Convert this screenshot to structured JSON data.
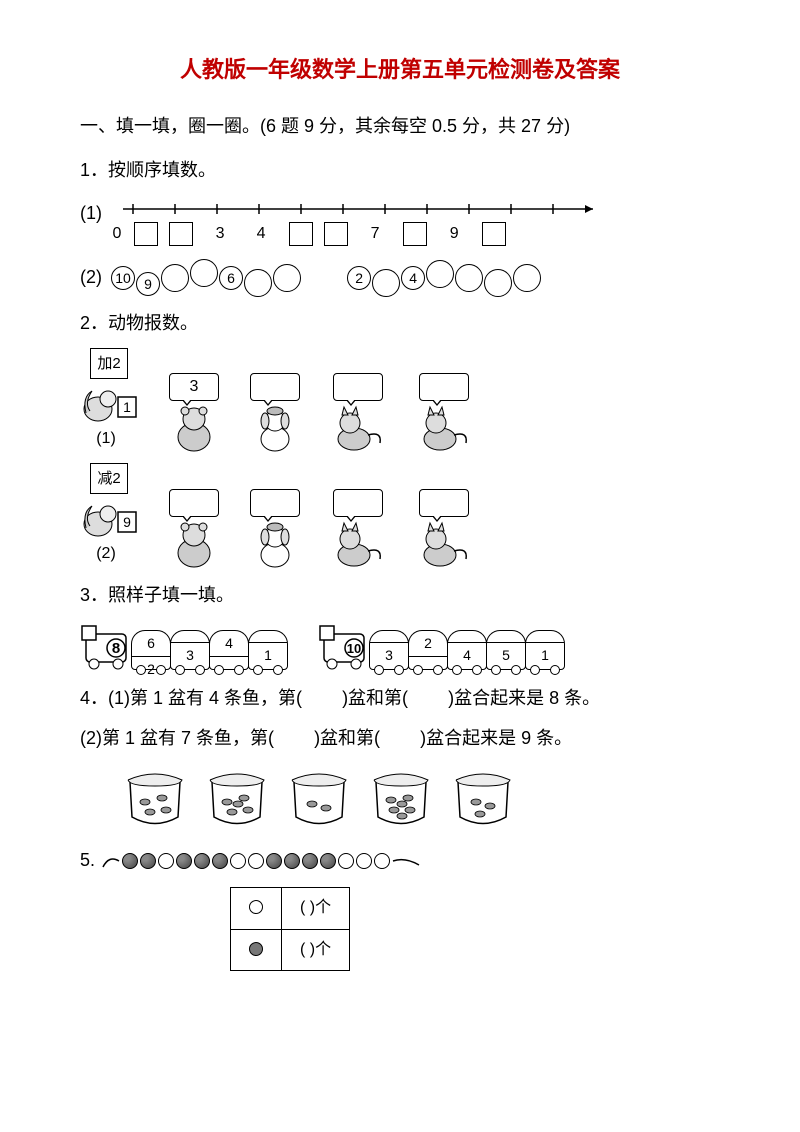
{
  "title": "人教版一年级数学上册第五单元检测卷及答案",
  "section1": {
    "heading": "一、填一填，圈一圈。(6 题 9 分，其余每空 0.5 分，共 27 分)",
    "q1": {
      "label": "1．按顺序填数。",
      "sub1_prefix": "(1)",
      "nl_marks": [
        "0",
        "",
        "",
        "3",
        "4",
        "",
        "",
        "7",
        "",
        "9",
        ""
      ],
      "sub2_prefix": "(2)",
      "chain_a": [
        "10",
        "9",
        "",
        "",
        "6",
        "",
        ""
      ],
      "chain_b": [
        "2",
        "",
        "4",
        "",
        "",
        "",
        ""
      ]
    },
    "q2": {
      "label": "2．动物报数。",
      "sub1_prefix": "(1)",
      "row1_rule": "加2",
      "row1_start": "1",
      "row1_bear": "3",
      "sub2_prefix": "(2)",
      "row2_rule": "减2",
      "row2_start": "9"
    },
    "q3": {
      "label": "3．照样子填一填。",
      "trainA": {
        "loco": "8",
        "cars": [
          [
            "6",
            "2"
          ],
          [
            "",
            "3"
          ],
          [
            "4",
            ""
          ],
          [
            "",
            "1"
          ]
        ]
      },
      "trainB": {
        "loco": "10",
        "cars": [
          [
            "",
            "3"
          ],
          [
            "2",
            ""
          ],
          [
            "",
            "",
            "4"
          ],
          [
            "",
            "5"
          ],
          [
            "",
            "1"
          ]
        ]
      }
    },
    "q4": {
      "line1_pre": "4．(1)第 1 盆有 4 条鱼，第(",
      "line1_mid": ")盆和第(",
      "line1_end": ")盆合起来是 8 条。",
      "line2_pre": "(2)第 1 盆有 7 条鱼，第(",
      "line2_mid": ")盆和第(",
      "line2_end": ")盆合起来是 9 条。"
    },
    "q5": {
      "prefix": "5.",
      "bead_pattern": [
        "f",
        "f",
        "o",
        "f",
        "f",
        "f",
        "o",
        "o",
        "f",
        "f",
        "f",
        "f",
        "o",
        "o",
        "o"
      ],
      "row_open_label": "(        )个",
      "row_fill_label": "(        )个"
    }
  },
  "colors": {
    "title_color": "#c00000",
    "text_color": "#000000",
    "background": "#ffffff"
  }
}
